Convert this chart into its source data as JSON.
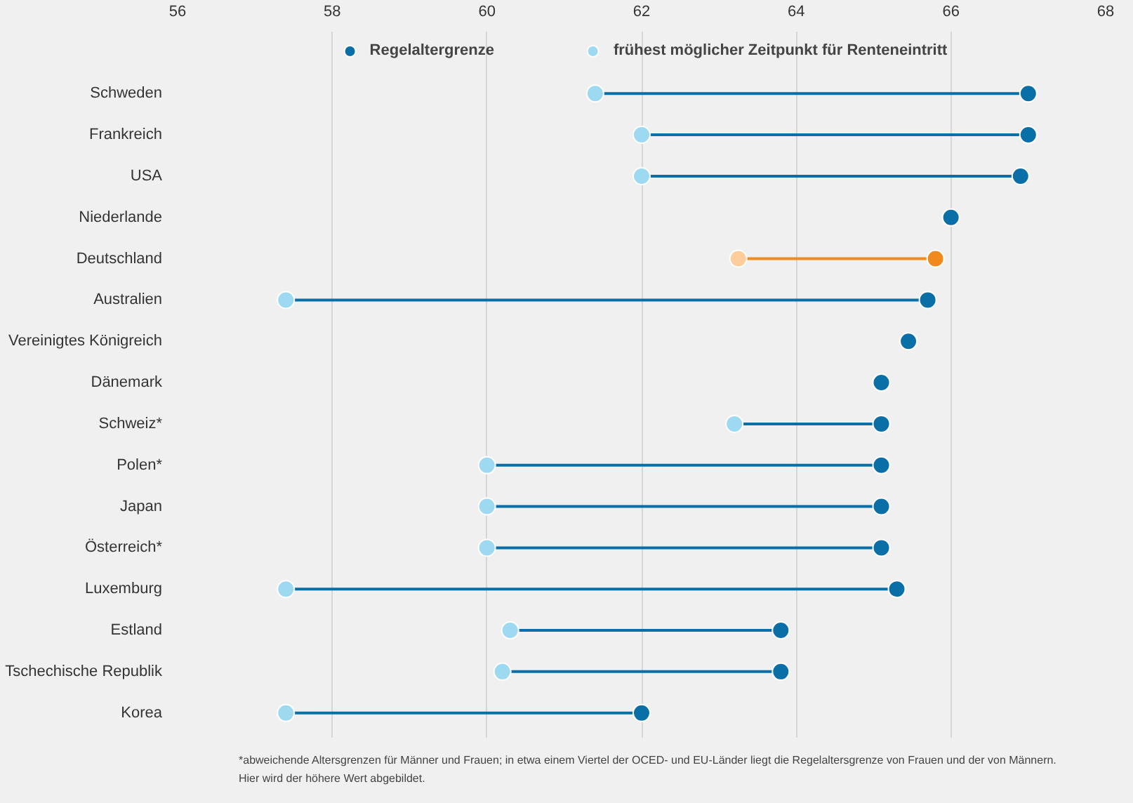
{
  "chart_data": {
    "type": "scatter",
    "orientation": "horizontal",
    "categories": [
      "Schweden",
      "Frankreich",
      "USA",
      "Niederlande",
      "Deutschland",
      "Australien",
      "Vereinigtes Königreich",
      "Dänemark",
      "Schweiz*",
      "Polen*",
      "Japan",
      "Österreich*",
      "Luxemburg",
      "Estland",
      "Tschechische Republik",
      "Korea"
    ],
    "series": [
      {
        "name": "frühest möglicher Zeitpunkt für Renteneintritt",
        "color": "#9ed9f2",
        "colors": [
          "#9ed9f2",
          "#9ed9f2",
          "#9ed9f2",
          "#9ed9f2",
          "#fdcd9b",
          "#9ed9f2",
          "#9ed9f2",
          "#9ed9f2",
          "#9ed9f2",
          "#9ed9f2",
          "#9ed9f2",
          "#9ed9f2",
          "#9ed9f2",
          "#9ed9f2",
          "#9ed9f2",
          "#9ed9f2"
        ],
        "values": [
          61.4,
          62.0,
          62.0,
          null,
          63.25,
          57.4,
          null,
          null,
          63.2,
          60.0,
          60.0,
          60.0,
          57.4,
          60.3,
          60.2,
          57.4
        ]
      },
      {
        "name": "Regelaltergrenze",
        "color": "#0a6fa6",
        "colors": [
          "#0a6fa6",
          "#0a6fa6",
          "#0a6fa6",
          "#0a6fa6",
          "#f08a1c",
          "#0a6fa6",
          "#0a6fa6",
          "#0a6fa6",
          "#0a6fa6",
          "#0a6fa6",
          "#0a6fa6",
          "#0a6fa6",
          "#0a6fa6",
          "#0a6fa6",
          "#0a6fa6",
          "#0a6fa6"
        ],
        "values": [
          67.0,
          67.0,
          66.9,
          66.0,
          65.8,
          65.7,
          65.45,
          65.1,
          65.1,
          65.1,
          65.1,
          65.1,
          65.3,
          63.8,
          63.8,
          62.0
        ]
      }
    ],
    "xlim": [
      56,
      68
    ],
    "xticks": [
      56,
      58,
      60,
      62,
      64,
      66,
      68
    ],
    "grid": "x",
    "legend": "top",
    "marker": "circle",
    "annotations": [
      "*abweichende Altersgrenzen für Männer und Frauen; in etwa einem Viertel der OCED- und EU-Länder liegt die Regelaltersgrenze von Frauen und der von Männern.",
      "Hier wird der höhere Wert abgebildet."
    ]
  }
}
